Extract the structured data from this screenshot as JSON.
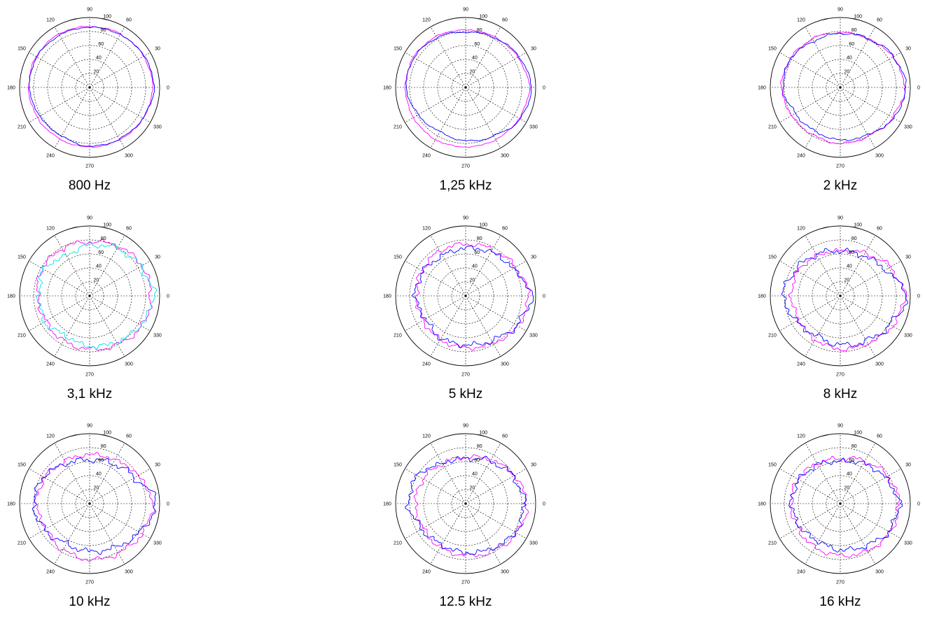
{
  "chart_data": [
    {
      "type": "polar",
      "caption": "800 Hz",
      "rlim": [
        0,
        100
      ],
      "radial_ticks": [
        "20",
        "40",
        "60",
        "80",
        "100"
      ],
      "angle_ticks": [
        "0",
        "30",
        "60",
        "90",
        "120",
        "150",
        "180",
        "210",
        "240",
        "270",
        "300",
        "330"
      ],
      "grid": true,
      "series": [
        {
          "color": "#ff00ff",
          "angles_deg": [
            0,
            30,
            60,
            90,
            120,
            150,
            180,
            210,
            240,
            270,
            300,
            330
          ],
          "r": [
            90,
            89,
            88,
            87,
            88,
            88,
            87,
            86,
            85,
            85,
            86,
            88
          ]
        },
        {
          "color": "#0000ff",
          "angles_deg": [
            0,
            30,
            60,
            90,
            120,
            150,
            180,
            210,
            240,
            270,
            300,
            330
          ],
          "r": [
            92,
            90,
            87,
            86,
            86,
            87,
            86,
            82,
            80,
            84,
            85,
            88
          ]
        }
      ]
    },
    {
      "type": "polar",
      "caption": "1,25 kHz",
      "rlim": [
        0,
        100
      ],
      "radial_ticks": [
        "20",
        "40",
        "60",
        "80",
        "100"
      ],
      "angle_ticks": [
        "0",
        "30",
        "60",
        "90",
        "120",
        "150",
        "180",
        "210",
        "240",
        "270",
        "300",
        "330"
      ],
      "grid": true,
      "series": [
        {
          "color": "#ff00ff",
          "angles_deg": [
            0,
            30,
            60,
            90,
            120,
            150,
            180,
            210,
            240,
            270,
            300,
            330
          ],
          "r": [
            91,
            86,
            83,
            82,
            84,
            86,
            86,
            86,
            86,
            85,
            86,
            88
          ]
        },
        {
          "color": "#0000ff",
          "angles_deg": [
            0,
            30,
            60,
            90,
            120,
            150,
            180,
            210,
            240,
            270,
            300,
            330
          ],
          "r": [
            94,
            88,
            82,
            79,
            82,
            85,
            85,
            78,
            73,
            76,
            80,
            90
          ]
        }
      ]
    },
    {
      "type": "polar",
      "caption": "2 kHz",
      "rlim": [
        0,
        100
      ],
      "radial_ticks": [
        "20",
        "40",
        "60",
        "80",
        "100"
      ],
      "angle_ticks": [
        "0",
        "30",
        "60",
        "90",
        "120",
        "150",
        "180",
        "210",
        "240",
        "270",
        "300",
        "330"
      ],
      "grid": true,
      "series": [
        {
          "color": "#ff00ff",
          "angles_deg": [
            0,
            30,
            60,
            90,
            120,
            150,
            180,
            210,
            240,
            270,
            300,
            330
          ],
          "r": [
            92,
            87,
            80,
            78,
            80,
            82,
            84,
            80,
            78,
            80,
            80,
            86
          ]
        },
        {
          "color": "#0000ff",
          "angles_deg": [
            0,
            30,
            60,
            90,
            120,
            150,
            180,
            210,
            240,
            270,
            300,
            330
          ],
          "r": [
            94,
            88,
            80,
            77,
            76,
            82,
            82,
            74,
            72,
            75,
            78,
            88
          ]
        }
      ]
    },
    {
      "type": "polar",
      "caption": "3,1 kHz",
      "rlim": [
        0,
        100
      ],
      "radial_ticks": [
        "20",
        "40",
        "60",
        "80",
        "100"
      ],
      "angle_ticks": [
        "0",
        "30",
        "60",
        "90",
        "120",
        "150",
        "180",
        "210",
        "240",
        "270",
        "300",
        "330"
      ],
      "grid": true,
      "series": [
        {
          "color": "#ff00ff",
          "angles_deg": [
            0,
            30,
            60,
            90,
            120,
            150,
            180,
            210,
            240,
            270,
            300,
            330
          ],
          "r": [
            88,
            86,
            82,
            77,
            78,
            78,
            74,
            72,
            74,
            76,
            80,
            86
          ]
        },
        {
          "color": "#00e5e5",
          "angles_deg": [
            0,
            30,
            60,
            90,
            120,
            150,
            180,
            210,
            240,
            270,
            300,
            330
          ],
          "r": [
            92,
            84,
            78,
            72,
            66,
            76,
            72,
            74,
            66,
            72,
            76,
            84
          ]
        }
      ]
    },
    {
      "type": "polar",
      "caption": "5 kHz",
      "rlim": [
        0,
        100
      ],
      "radial_ticks": [
        "20",
        "40",
        "60",
        "80",
        "100"
      ],
      "angle_ticks": [
        "0",
        "30",
        "60",
        "90",
        "120",
        "150",
        "180",
        "210",
        "240",
        "270",
        "300",
        "330"
      ],
      "grid": true,
      "series": [
        {
          "color": "#ff00ff",
          "angles_deg": [
            0,
            30,
            60,
            90,
            120,
            150,
            180,
            210,
            240,
            270,
            300,
            330
          ],
          "r": [
            90,
            82,
            76,
            74,
            74,
            72,
            70,
            70,
            72,
            74,
            78,
            86
          ]
        },
        {
          "color": "#0000ff",
          "angles_deg": [
            0,
            30,
            60,
            90,
            120,
            150,
            180,
            210,
            240,
            270,
            300,
            330
          ],
          "r": [
            94,
            78,
            72,
            68,
            66,
            70,
            72,
            66,
            70,
            70,
            74,
            84
          ]
        }
      ]
    },
    {
      "type": "polar",
      "caption": "8 kHz",
      "rlim": [
        0,
        100
      ],
      "radial_ticks": [
        "20",
        "40",
        "60",
        "80",
        "100"
      ],
      "angle_ticks": [
        "0",
        "30",
        "60",
        "90",
        "120",
        "150",
        "180",
        "210",
        "240",
        "270",
        "300",
        "330"
      ],
      "grid": true,
      "series": [
        {
          "color": "#ff00ff",
          "angles_deg": [
            0,
            30,
            60,
            90,
            120,
            150,
            180,
            210,
            240,
            270,
            300,
            330
          ],
          "r": [
            92,
            82,
            70,
            64,
            66,
            70,
            70,
            68,
            72,
            76,
            78,
            86
          ]
        },
        {
          "color": "#0000ff",
          "angles_deg": [
            0,
            30,
            60,
            90,
            120,
            150,
            180,
            210,
            240,
            270,
            300,
            330
          ],
          "r": [
            95,
            74,
            66,
            64,
            68,
            74,
            82,
            72,
            66,
            70,
            74,
            82
          ]
        }
      ]
    },
    {
      "type": "polar",
      "caption": "10 kHz",
      "rlim": [
        0,
        100
      ],
      "radial_ticks": [
        "20",
        "40",
        "60",
        "80",
        "100"
      ],
      "angle_ticks": [
        "0",
        "30",
        "60",
        "90",
        "120",
        "150",
        "180",
        "210",
        "240",
        "270",
        "300",
        "330"
      ],
      "grid": true,
      "series": [
        {
          "color": "#ff00ff",
          "angles_deg": [
            0,
            30,
            60,
            90,
            120,
            150,
            180,
            210,
            240,
            270,
            300,
            330
          ],
          "r": [
            90,
            80,
            72,
            70,
            70,
            74,
            76,
            72,
            76,
            80,
            82,
            86
          ]
        },
        {
          "color": "#0000ff",
          "angles_deg": [
            0,
            30,
            60,
            90,
            120,
            150,
            180,
            210,
            240,
            270,
            300,
            330
          ],
          "r": [
            96,
            74,
            66,
            62,
            66,
            76,
            80,
            74,
            66,
            68,
            72,
            82
          ]
        }
      ]
    },
    {
      "type": "polar",
      "caption": "12.5 kHz",
      "rlim": [
        0,
        100
      ],
      "radial_ticks": [
        "20",
        "40",
        "60",
        "80",
        "100"
      ],
      "angle_ticks": [
        "0",
        "30",
        "60",
        "90",
        "120",
        "150",
        "180",
        "210",
        "240",
        "270",
        "300",
        "330"
      ],
      "grid": true,
      "series": [
        {
          "color": "#ff00ff",
          "angles_deg": [
            0,
            30,
            60,
            90,
            120,
            150,
            180,
            210,
            240,
            270,
            300,
            330
          ],
          "r": [
            88,
            80,
            72,
            66,
            66,
            70,
            72,
            70,
            72,
            74,
            78,
            84
          ]
        },
        {
          "color": "#0000ff",
          "angles_deg": [
            0,
            30,
            60,
            90,
            120,
            150,
            180,
            210,
            240,
            270,
            300,
            330
          ],
          "r": [
            84,
            78,
            70,
            64,
            66,
            80,
            82,
            72,
            68,
            70,
            74,
            82
          ]
        }
      ]
    },
    {
      "type": "polar",
      "caption": "16 kHz",
      "rlim": [
        0,
        100
      ],
      "radial_ticks": [
        "20",
        "40",
        "60",
        "80",
        "100"
      ],
      "angle_ticks": [
        "0",
        "30",
        "60",
        "90",
        "120",
        "150",
        "180",
        "210",
        "240",
        "270",
        "300",
        "330"
      ],
      "grid": true,
      "series": [
        {
          "color": "#ff00ff",
          "angles_deg": [
            0,
            30,
            60,
            90,
            120,
            150,
            180,
            210,
            240,
            270,
            300,
            330
          ],
          "r": [
            84,
            78,
            70,
            64,
            66,
            70,
            70,
            70,
            72,
            74,
            78,
            82
          ]
        },
        {
          "color": "#0000ff",
          "angles_deg": [
            0,
            30,
            60,
            90,
            120,
            150,
            180,
            210,
            240,
            270,
            300,
            330
          ],
          "r": [
            84,
            74,
            66,
            60,
            64,
            68,
            70,
            66,
            62,
            66,
            70,
            80
          ]
        }
      ]
    }
  ]
}
